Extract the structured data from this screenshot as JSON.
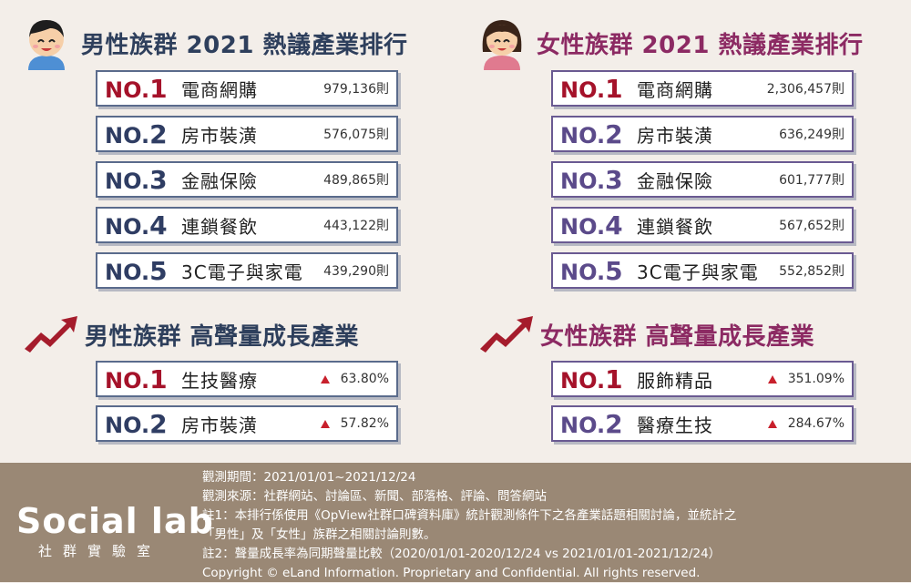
{
  "male": {
    "hot_title": "男性族群 2021 熱議產業排行",
    "hot": [
      {
        "no": "NO.",
        "num": "1",
        "name": "電商網購",
        "count": "979,136則"
      },
      {
        "no": "NO.",
        "num": "2",
        "name": "房市裝潢",
        "count": "576,075則"
      },
      {
        "no": "NO.",
        "num": "3",
        "name": "金融保險",
        "count": "489,865則"
      },
      {
        "no": "NO.",
        "num": "4",
        "name": "連鎖餐飲",
        "count": "443,122則"
      },
      {
        "no": "NO.",
        "num": "5",
        "name": "3C電子與家電",
        "count": "439,290則"
      }
    ],
    "growth_title": "男性族群 高聲量成長產業",
    "growth": [
      {
        "no": "NO.",
        "num": "1",
        "name": "生技醫療",
        "pct": "63.80%"
      },
      {
        "no": "NO.",
        "num": "2",
        "name": "房市裝潢",
        "pct": "57.82%"
      }
    ]
  },
  "female": {
    "hot_title": "女性族群 2021 熱議產業排行",
    "hot": [
      {
        "no": "NO.",
        "num": "1",
        "name": "電商網購",
        "count": "2,306,457則"
      },
      {
        "no": "NO.",
        "num": "2",
        "name": "房市裝潢",
        "count": "636,249則"
      },
      {
        "no": "NO.",
        "num": "3",
        "name": "金融保險",
        "count": "601,777則"
      },
      {
        "no": "NO.",
        "num": "4",
        "name": "連鎖餐飲",
        "count": "567,652則"
      },
      {
        "no": "NO.",
        "num": "5",
        "name": "3C電子與家電",
        "count": "552,852則"
      }
    ],
    "growth_title": "女性族群 高聲量成長產業",
    "growth": [
      {
        "no": "NO.",
        "num": "1",
        "name": "服飾精品",
        "pct": "351.09%"
      },
      {
        "no": "NO.",
        "num": "2",
        "name": "醫療生技",
        "pct": "284.67%"
      }
    ]
  },
  "footer": {
    "logo_word": "Social lab",
    "logo_sub": "社群實驗室",
    "notes": [
      "觀測期間：2021/01/01~2021/12/24",
      "觀測來源：社群網站、討論區、新聞、部落格、評論、問答網站",
      "註1：本排行係使用《OpView社群口碑資料庫》統計觀測條件下之各產業話題相關討論，並統計之",
      "「男性」及「女性」族群之相關討論則數。",
      "註2：聲量成長率為同期聲量比較（2020/01/01-2020/12/24 vs 2021/01/01-2021/12/24）",
      "Copyright © eLand Information. Proprietary and Confidential. All rights reserved."
    ]
  },
  "colors": {
    "male_title": "#2e3f5c",
    "female_title": "#8c2a63",
    "rank_first": "#a5122a",
    "growth_arrow": "#c8202c",
    "footer_bg": "#9a8875"
  },
  "icons": {
    "male_avatar": "boy-face-icon",
    "female_avatar": "girl-face-icon",
    "trend": "trend-up-arrow-icon",
    "growth": "up-triangle-icon"
  }
}
